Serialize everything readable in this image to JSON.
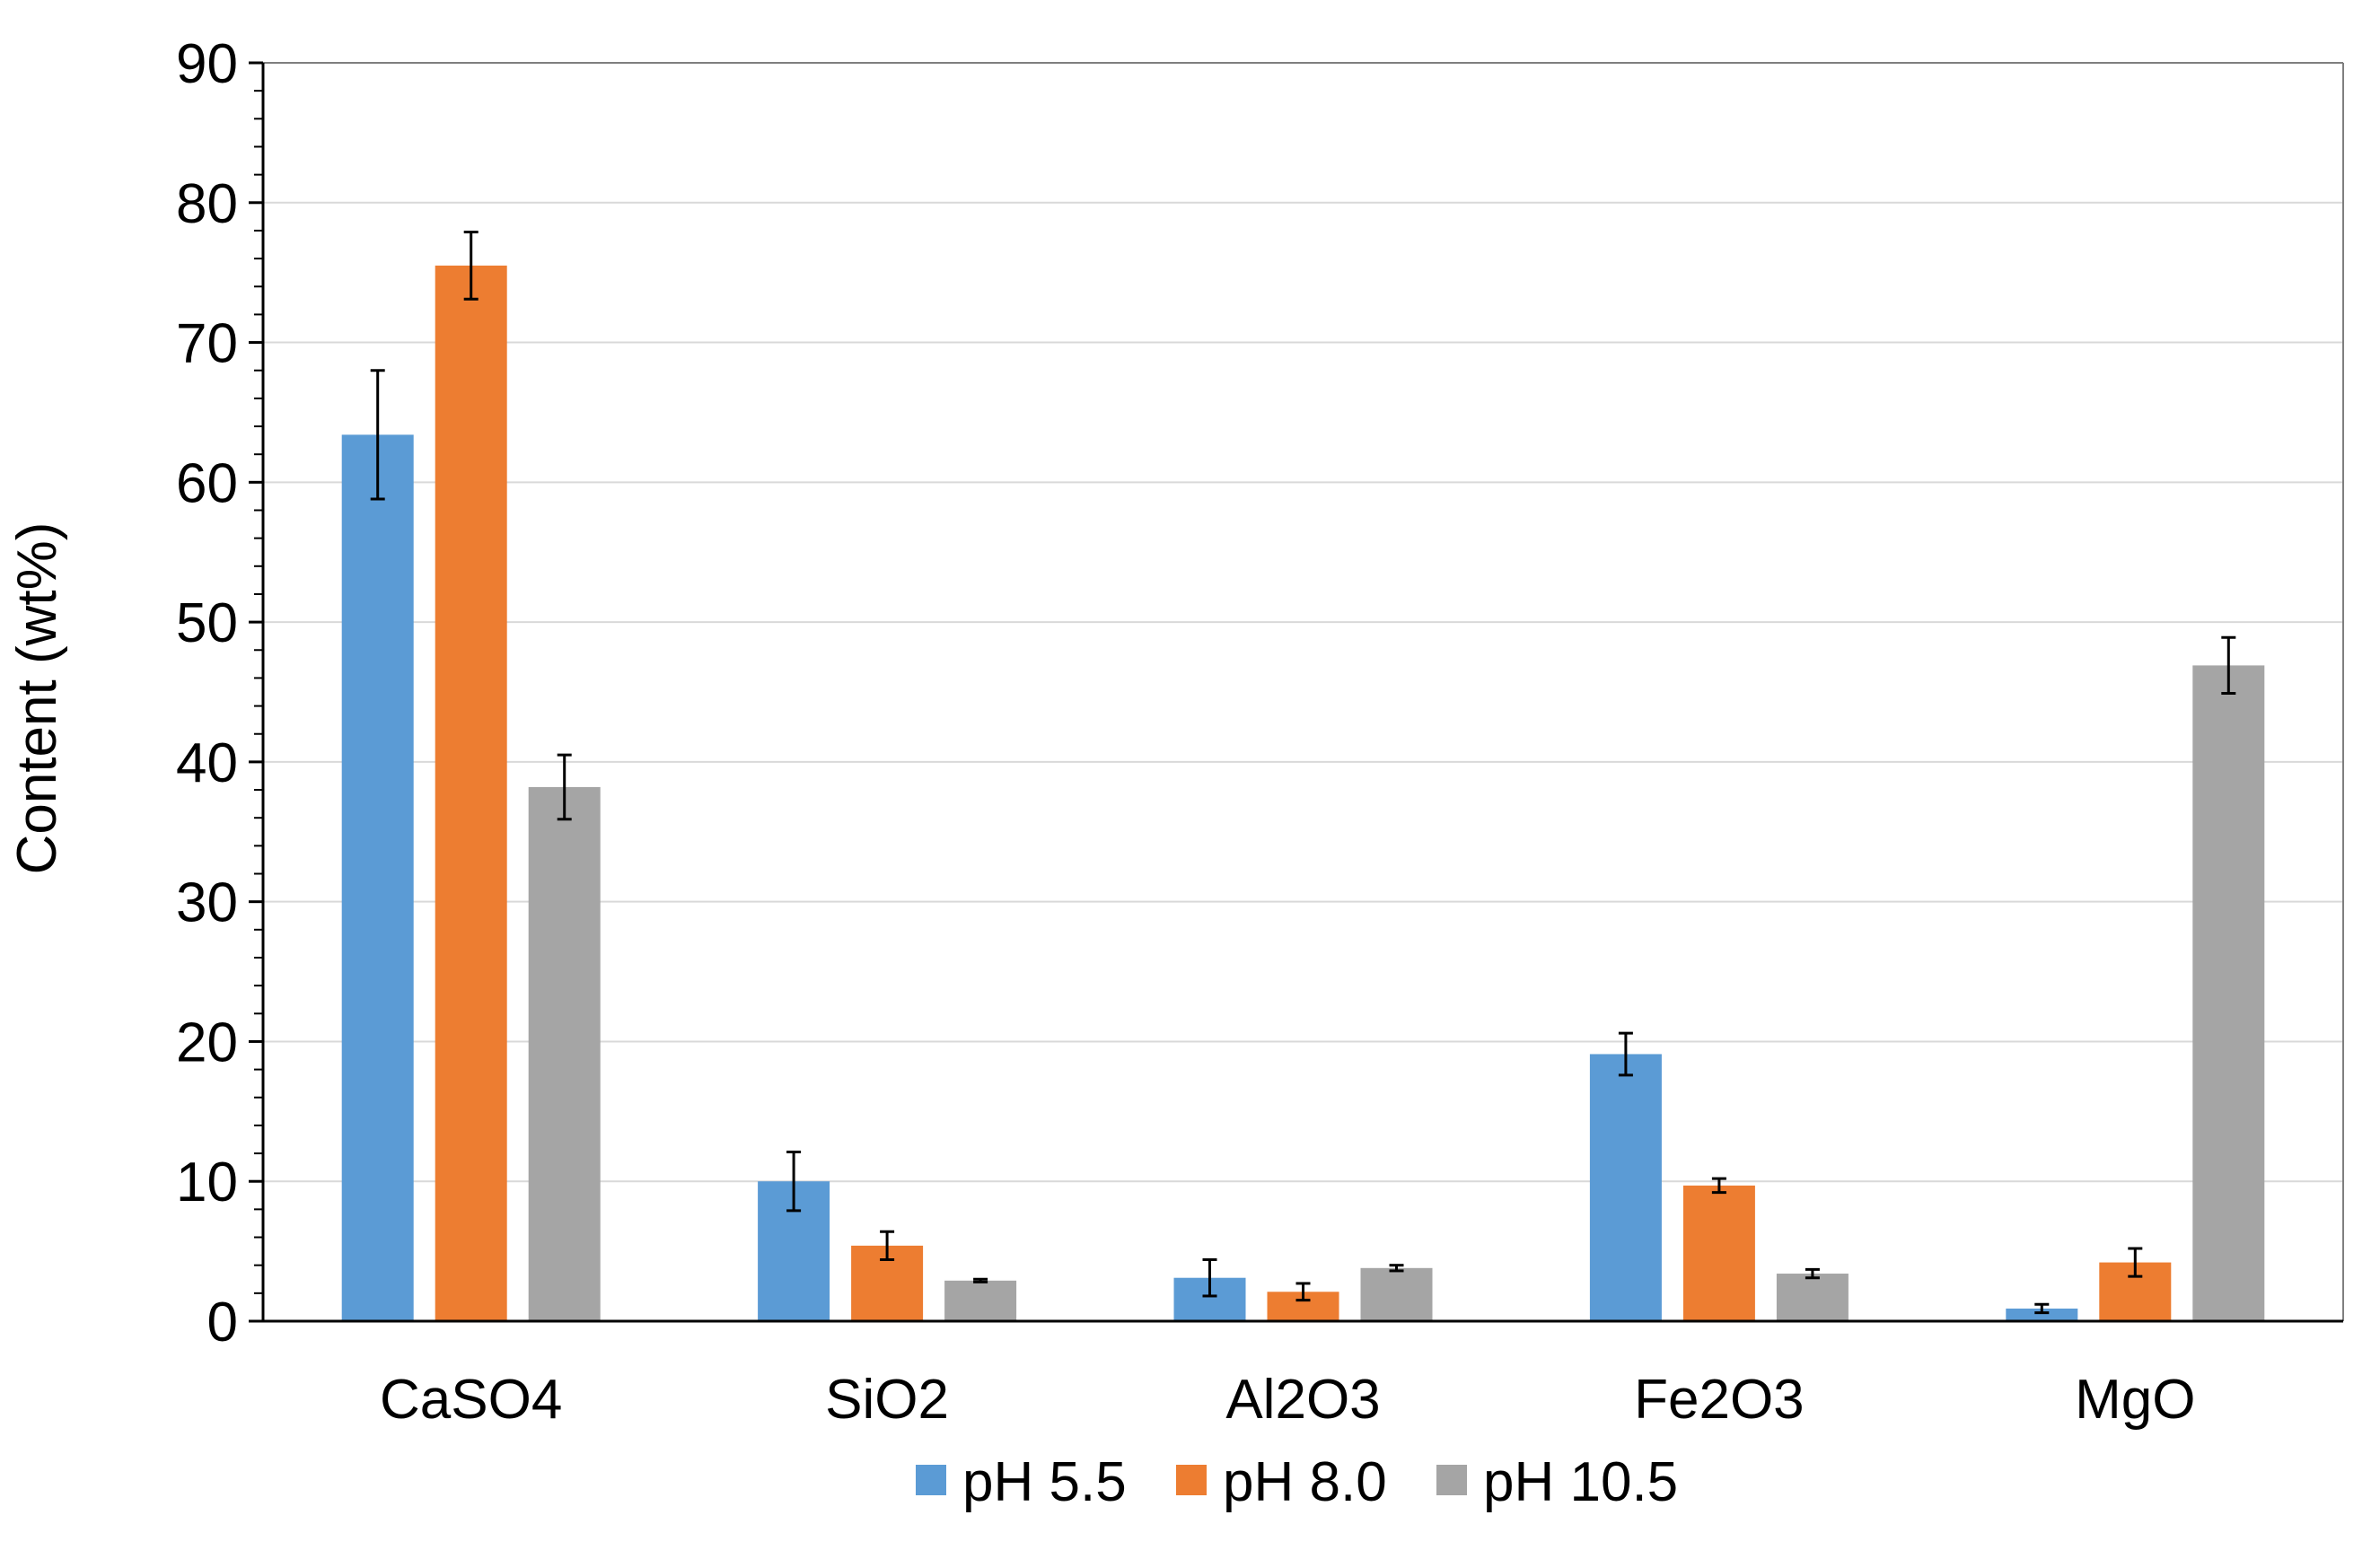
{
  "chart_data": {
    "type": "bar",
    "title": "",
    "xlabel": "",
    "ylabel": "Content  (wt%)",
    "ylim": [
      0,
      90
    ],
    "y_ticks": [
      0,
      10,
      20,
      30,
      40,
      50,
      60,
      70,
      80,
      90
    ],
    "grid": true,
    "legend_position": "bottom",
    "categories": [
      "CaSO4",
      "SiO2",
      "Al2O3",
      "Fe2O3",
      "MgO"
    ],
    "series": [
      {
        "name": "pH 5.5",
        "color": "#5B9BD5",
        "values": [
          63.4,
          10.0,
          3.1,
          19.1,
          0.9
        ],
        "errors": [
          4.6,
          2.1,
          1.3,
          1.5,
          0.3
        ]
      },
      {
        "name": "pH 8.0",
        "color": "#ED7D31",
        "values": [
          75.5,
          5.4,
          2.1,
          9.7,
          4.2
        ],
        "errors": [
          2.4,
          1.0,
          0.6,
          0.5,
          1.0
        ]
      },
      {
        "name": "pH 10.5",
        "color": "#A5A5A5",
        "values": [
          38.2,
          2.9,
          3.8,
          3.4,
          46.9
        ],
        "errors": [
          2.3,
          0.1,
          0.2,
          0.3,
          2.0
        ]
      }
    ]
  },
  "colors": {
    "axis": "#000000",
    "grid": "#D9D9D9",
    "error_bar": "#000000"
  }
}
